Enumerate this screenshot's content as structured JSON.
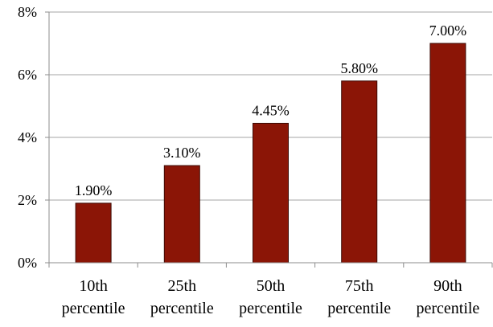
{
  "chart_data": {
    "type": "bar",
    "categories": [
      [
        "10th",
        "percentile"
      ],
      [
        "25th",
        "percentile"
      ],
      [
        "50th",
        "percentile"
      ],
      [
        "75th",
        "percentile"
      ],
      [
        "90th",
        "percentile"
      ]
    ],
    "values": [
      1.9,
      3.1,
      4.45,
      5.8,
      7.0
    ],
    "data_labels": [
      "1.90%",
      "3.10%",
      "4.45%",
      "5.80%",
      "7.00%"
    ],
    "y_ticks": [
      0,
      2,
      4,
      6,
      8
    ],
    "y_tick_labels": [
      "0%",
      "2%",
      "4%",
      "6%",
      "8%"
    ],
    "ylim": [
      0,
      8
    ],
    "grid": true,
    "legend": "none",
    "title": "",
    "xlabel": "",
    "ylabel": "",
    "colors": {
      "bar_fill": "#8b1506",
      "bar_stroke": "#3d0b05",
      "grid": "#a6a6a6",
      "axis": "#8c8c8c"
    }
  }
}
